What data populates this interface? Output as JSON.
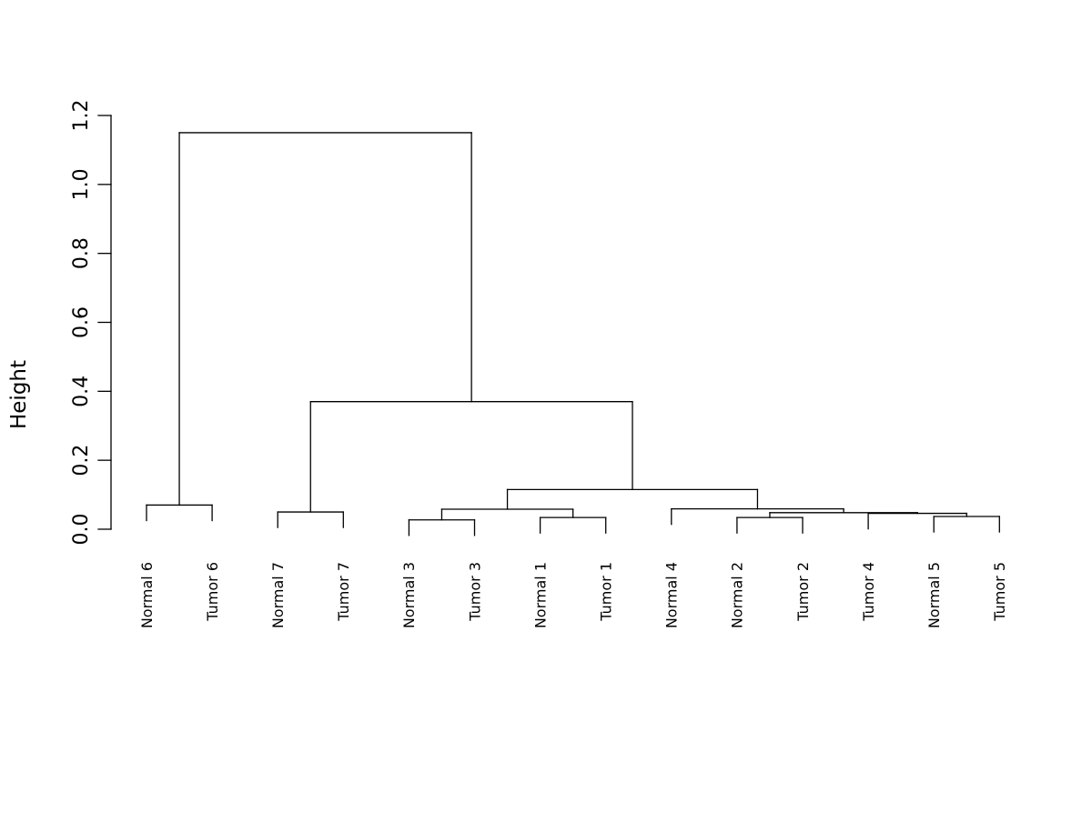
{
  "chart_data": {
    "type": "dendrogram",
    "title": "",
    "ylabel": "Height",
    "ylim": [
      0,
      1.2
    ],
    "yticks": [
      "0.0",
      "0.2",
      "0.4",
      "0.6",
      "0.8",
      "1.0",
      "1.2"
    ],
    "leaves": [
      "Normal 6",
      "Tumor 6",
      "Normal 7",
      "Tumor 7",
      "Normal 3",
      "Tumor 3",
      "Normal 1",
      "Tumor 1",
      "Normal 4",
      "Normal 2",
      "Tumor 2",
      "Tumor 4",
      "Normal 5",
      "Tumor 5"
    ],
    "merges": [
      {
        "id": "m1",
        "children": [
          "Normal 6",
          "Tumor 6"
        ],
        "height": 0.07
      },
      {
        "id": "m2",
        "children": [
          "Normal 7",
          "Tumor 7"
        ],
        "height": 0.05
      },
      {
        "id": "m3",
        "children": [
          "Normal 3",
          "Tumor 3"
        ],
        "height": 0.027
      },
      {
        "id": "m4",
        "children": [
          "Normal 1",
          "Tumor 1"
        ],
        "height": 0.034
      },
      {
        "id": "m5",
        "children": [
          "m3",
          "m4"
        ],
        "height": 0.058
      },
      {
        "id": "m6",
        "children": [
          "Normal 2",
          "Tumor 2"
        ],
        "height": 0.034
      },
      {
        "id": "m7",
        "children": [
          "Normal 5",
          "Tumor 5"
        ],
        "height": 0.037
      },
      {
        "id": "m8",
        "children": [
          "Tumor 4",
          "m7"
        ],
        "height": 0.046
      },
      {
        "id": "m9",
        "children": [
          "m6",
          "m8"
        ],
        "height": 0.048
      },
      {
        "id": "m10",
        "children": [
          "Normal 4",
          "m9"
        ],
        "height": 0.059
      },
      {
        "id": "m11",
        "children": [
          "m5",
          "m10"
        ],
        "height": 0.115
      },
      {
        "id": "m12",
        "children": [
          "m2",
          "m11"
        ],
        "height": 0.37
      },
      {
        "id": "m13",
        "children": [
          "m1",
          "m12"
        ],
        "height": 1.15
      }
    ],
    "leaf_hang": 0.045,
    "grid": false,
    "legend": "none"
  }
}
